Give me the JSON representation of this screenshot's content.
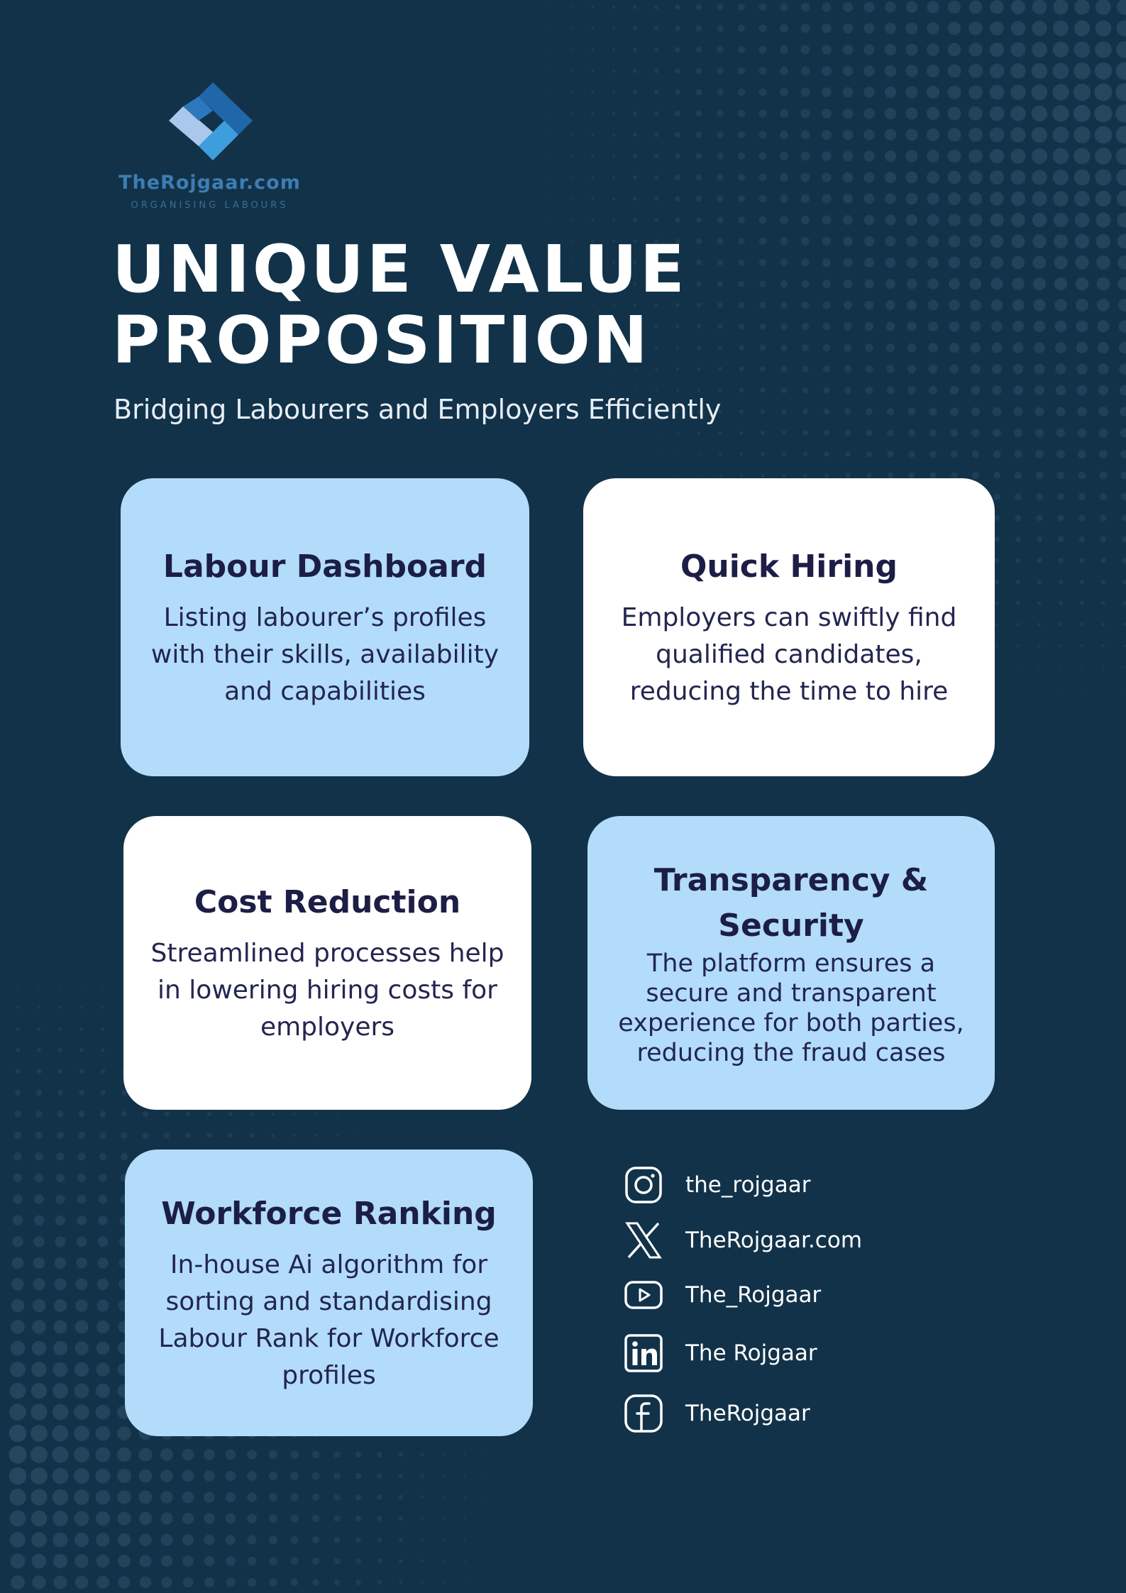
{
  "brand": {
    "name": "TheRojgaar.com",
    "tagline": "ORGANISING LABOURS",
    "colors": {
      "background": "#123249",
      "card_blue": "#b3dcfb",
      "card_white": "#ffffff",
      "heading": "#1c1e46",
      "logo_blue": "#3d7eb2"
    }
  },
  "header": {
    "title_line1": "UNIQUE VALUE",
    "title_line2": "PROPOSITION",
    "subtitle": "Bridging Labourers and Employers Efficiently"
  },
  "cards": [
    {
      "title": "Labour Dashboard",
      "text": "Listing labourer’s profiles with their skills, availability and capabilities",
      "style": "blue"
    },
    {
      "title": "Quick Hiring",
      "text": "Employers can swiftly find qualified candidates, reducing the time to hire",
      "style": "white"
    },
    {
      "title": "Cost Reduction",
      "text": "Streamlined processes help in lowering hiring costs for employers",
      "style": "white"
    },
    {
      "title": "Transparency & Security",
      "text": "The platform ensures a secure and transparent experience for both parties, reducing the fraud cases",
      "style": "blue"
    },
    {
      "title": "Workforce Ranking",
      "text": "In-house Ai algorithm for sorting and standardising Labour Rank for Workforce profiles",
      "style": "blue"
    }
  ],
  "socials": [
    {
      "icon": "instagram-icon",
      "handle": "the_rojgaar"
    },
    {
      "icon": "x-icon",
      "handle": "TheRojgaar.com"
    },
    {
      "icon": "youtube-icon",
      "handle": "The_Rojgaar"
    },
    {
      "icon": "linkedin-icon",
      "handle": "The Rojgaar"
    },
    {
      "icon": "facebook-icon",
      "handle": "TheRojgaar"
    }
  ]
}
